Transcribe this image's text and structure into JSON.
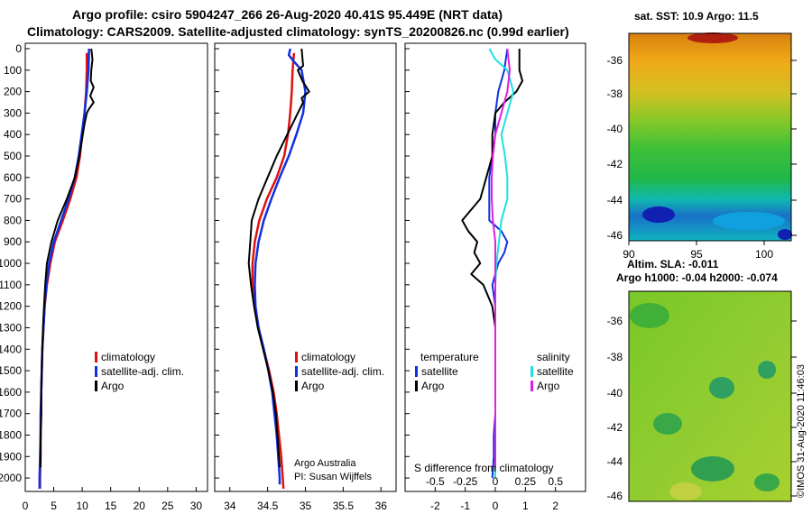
{
  "title_line1": "Argo profile: csiro 5904247_266 26-Aug-2020 40.41S 95.449E (NRT data)",
  "title_line2": "Climatology: CARS2009. Satellite-adjusted climatology: synTS_20200826.nc (0.99d earlier)",
  "sst_title": "sat. SST: 10.9 Argo: 11.5",
  "sla_title1": "Altim. SLA: -0.011",
  "sla_title2": "Argo h1000: -0.04 h2000: -0.074",
  "credit": "Argo Australia",
  "pi": "PI: Susan Wijffels",
  "footer": "©IMOS 31-Aug-2020 11:46:03",
  "colors": {
    "climatology": "#e01010",
    "satellite": "#1030e0",
    "argo": "#000000",
    "sat_sal": "#20e0e0",
    "argo_sal": "#e020e0"
  },
  "chart_data": [
    {
      "type": "line",
      "panel": "temperature",
      "xlim": [
        0,
        32
      ],
      "ylim": [
        2050,
        0
      ],
      "xticks": [
        "0",
        "5",
        "10",
        "15",
        "20",
        "25",
        "30"
      ],
      "yticks": [
        "0",
        "100",
        "200",
        "300",
        "400",
        "500",
        "600",
        "700",
        "800",
        "900",
        "1000",
        "1100",
        "1200",
        "1300",
        "1400",
        "1500",
        "1600",
        "1700",
        "1800",
        "1900",
        "2000"
      ],
      "legend": [
        "climatology",
        "satellite-adj. clim.",
        "Argo"
      ],
      "series": [
        {
          "name": "climatology",
          "depth": [
            20,
            100,
            200,
            300,
            400,
            500,
            600,
            700,
            800,
            900,
            1000,
            1100,
            1200,
            1300,
            1400,
            1500,
            1600,
            1700,
            1800,
            1900,
            2000,
            2050
          ],
          "values": [
            10.8,
            10.8,
            10.7,
            10.4,
            10.0,
            9.6,
            9.0,
            7.9,
            6.6,
            5.2,
            4.4,
            3.8,
            3.4,
            3.2,
            3.0,
            2.9,
            2.8,
            2.8,
            2.7,
            2.7,
            2.6,
            2.6
          ]
        },
        {
          "name": "satellite-adj. clim.",
          "depth": [
            0,
            100,
            200,
            300,
            400,
            500,
            600,
            700,
            800,
            900,
            1000,
            1100,
            1200,
            1300,
            1400,
            1500,
            1600,
            1700,
            1800,
            1900,
            2000,
            2050
          ],
          "values": [
            11.2,
            11.1,
            10.8,
            10.4,
            9.9,
            9.4,
            8.7,
            7.6,
            6.3,
            5.0,
            4.2,
            3.7,
            3.4,
            3.2,
            3.0,
            2.9,
            2.8,
            2.7,
            2.7,
            2.6,
            2.5,
            2.5
          ]
        },
        {
          "name": "Argo",
          "depth": [
            0,
            50,
            100,
            150,
            180,
            220,
            250,
            280,
            300,
            350,
            400,
            500,
            600,
            700,
            800,
            900,
            1000,
            1100,
            1200,
            1300,
            1400,
            1500,
            1600,
            1700,
            1800,
            1900,
            1950
          ],
          "values": [
            11.6,
            11.8,
            11.6,
            11.5,
            12.0,
            11.4,
            12.0,
            11.2,
            10.8,
            10.4,
            10.1,
            9.5,
            8.7,
            7.3,
            5.7,
            4.6,
            3.8,
            3.5,
            3.3,
            3.1,
            3.0,
            2.9,
            2.8,
            2.8,
            2.7,
            2.7,
            2.7
          ]
        }
      ]
    },
    {
      "type": "line",
      "panel": "salinity",
      "xlim": [
        33.8,
        36.2
      ],
      "ylim": [
        2050,
        0
      ],
      "xticks": [
        "34",
        "34.5",
        "35",
        "35.5",
        "36"
      ],
      "legend": [
        "climatology",
        "satellite-adj. clim.",
        "Argo"
      ],
      "series": [
        {
          "name": "climatology",
          "depth": [
            20,
            100,
            200,
            300,
            400,
            500,
            600,
            700,
            800,
            900,
            1000,
            1100,
            1200,
            1300,
            1400,
            1500,
            1600,
            1700,
            1800,
            1900,
            2000,
            2050
          ],
          "values": [
            34.85,
            34.83,
            34.82,
            34.8,
            34.77,
            34.72,
            34.62,
            34.49,
            34.39,
            34.33,
            34.3,
            34.3,
            34.33,
            34.38,
            34.45,
            34.52,
            34.58,
            34.62,
            34.65,
            34.68,
            34.7,
            34.71
          ]
        },
        {
          "name": "satellite-adj. clim.",
          "depth": [
            0,
            30,
            60,
            100,
            200,
            300,
            400,
            500,
            600,
            700,
            800,
            900,
            1000,
            1100,
            1200,
            1300,
            1400,
            1500,
            1600,
            1700,
            1800,
            1900,
            2000,
            2030
          ],
          "values": [
            34.8,
            34.78,
            34.85,
            34.95,
            35.0,
            34.97,
            34.88,
            34.78,
            34.66,
            34.55,
            34.45,
            34.38,
            34.34,
            34.33,
            34.34,
            34.38,
            34.45,
            34.51,
            34.56,
            34.59,
            34.62,
            34.64,
            34.66,
            34.66
          ]
        },
        {
          "name": "Argo",
          "depth": [
            0,
            80,
            100,
            150,
            200,
            230,
            250,
            300,
            400,
            500,
            600,
            700,
            800,
            900,
            1000,
            1100,
            1200,
            1300,
            1400,
            1500,
            1600,
            1700,
            1800,
            1900,
            1950
          ],
          "values": [
            34.95,
            34.97,
            34.9,
            34.96,
            35.05,
            34.95,
            34.97,
            34.9,
            34.76,
            34.62,
            34.5,
            34.38,
            34.29,
            34.27,
            34.25,
            34.28,
            34.32,
            34.37,
            34.44,
            34.51,
            34.57,
            34.61,
            34.63,
            34.65,
            34.66
          ]
        }
      ]
    },
    {
      "type": "line",
      "panel": "difference",
      "title": "S difference from climatology",
      "xlim": [
        -3,
        3
      ],
      "ylim": [
        2050,
        0
      ],
      "xticks": [
        "-2",
        "-1",
        "0",
        "1",
        "2"
      ],
      "xticks_top": [
        "-0.5",
        "-0.25",
        "0",
        "0.25",
        "0.5"
      ],
      "legend_temperature": [
        "temperature",
        "satellite",
        "Argo"
      ],
      "legend_salinity": [
        "salinity",
        "satellite",
        "Argo"
      ],
      "series": [
        {
          "name": "temperature satellite",
          "depth": [
            0,
            100,
            200,
            300,
            400,
            500,
            600,
            700,
            800,
            850,
            900,
            950,
            1000,
            1050,
            1100,
            1200,
            1300,
            1400,
            1500,
            1600,
            1700,
            1800,
            1900,
            2000
          ],
          "values": [
            0.4,
            0.3,
            0.1,
            0.0,
            0.0,
            -0.1,
            -0.2,
            -0.2,
            -0.2,
            0.2,
            0.4,
            0.3,
            0.1,
            0.0,
            -0.1,
            0.0,
            0.0,
            0.0,
            0.0,
            0.0,
            0.0,
            -0.05,
            -0.05,
            -0.1
          ]
        },
        {
          "name": "temperature Argo",
          "depth": [
            0,
            100,
            150,
            200,
            250,
            300,
            400,
            500,
            600,
            700,
            800,
            850,
            900,
            950,
            1000,
            1050,
            1100,
            1200,
            1300,
            1400,
            1500,
            1600,
            1700,
            1800,
            1900,
            1950
          ],
          "values": [
            0.8,
            0.8,
            0.9,
            0.7,
            0.3,
            0.0,
            -0.1,
            -0.1,
            -0.3,
            -0.5,
            -1.1,
            -0.9,
            -0.6,
            -0.7,
            -0.5,
            -0.8,
            -0.4,
            -0.1,
            0.0,
            0.0,
            0.0,
            0.0,
            0.0,
            0.0,
            0.0,
            0.0
          ]
        },
        {
          "name": "salinity satellite",
          "depth": [
            0,
            50,
            100,
            200,
            300,
            400,
            500,
            600,
            700,
            800,
            900,
            1000,
            1100,
            1200,
            1300,
            1400,
            1500,
            1600,
            1700,
            1800,
            1900,
            2000
          ],
          "values": [
            -0.05,
            0.0,
            0.1,
            0.15,
            0.1,
            0.05,
            0.08,
            0.1,
            0.1,
            0.05,
            0.03,
            0.01,
            0.0,
            0.0,
            0.0,
            0.0,
            0.0,
            0.0,
            0.0,
            0.0,
            0.0,
            0.0
          ]
        },
        {
          "name": "salinity Argo",
          "depth": [
            0,
            100,
            200,
            300,
            400,
            500,
            600,
            700,
            800,
            900,
            1000,
            1100,
            1200,
            1300,
            1400,
            1500,
            1600,
            1700,
            1800,
            1900,
            1950
          ],
          "values": [
            0.1,
            0.12,
            0.1,
            0.05,
            0.0,
            -0.02,
            -0.03,
            -0.03,
            -0.02,
            0.0,
            0.0,
            0.0,
            0.0,
            0.0,
            0.0,
            0.0,
            0.0,
            0.0,
            0.0,
            0.0,
            0.0
          ]
        }
      ]
    },
    {
      "type": "heatmap",
      "panel": "sst-map",
      "title": "sat. SST: 10.9 Argo: 11.5",
      "xticks": [
        "90",
        "95",
        "100"
      ],
      "yticks": [
        "-36",
        "-38",
        "-40",
        "-42",
        "-44",
        "-46"
      ]
    },
    {
      "type": "heatmap",
      "panel": "sla-map",
      "title": "Altim. SLA: -0.011",
      "yticks": [
        "-36",
        "-38",
        "-40",
        "-42",
        "-44",
        "-46"
      ]
    }
  ]
}
